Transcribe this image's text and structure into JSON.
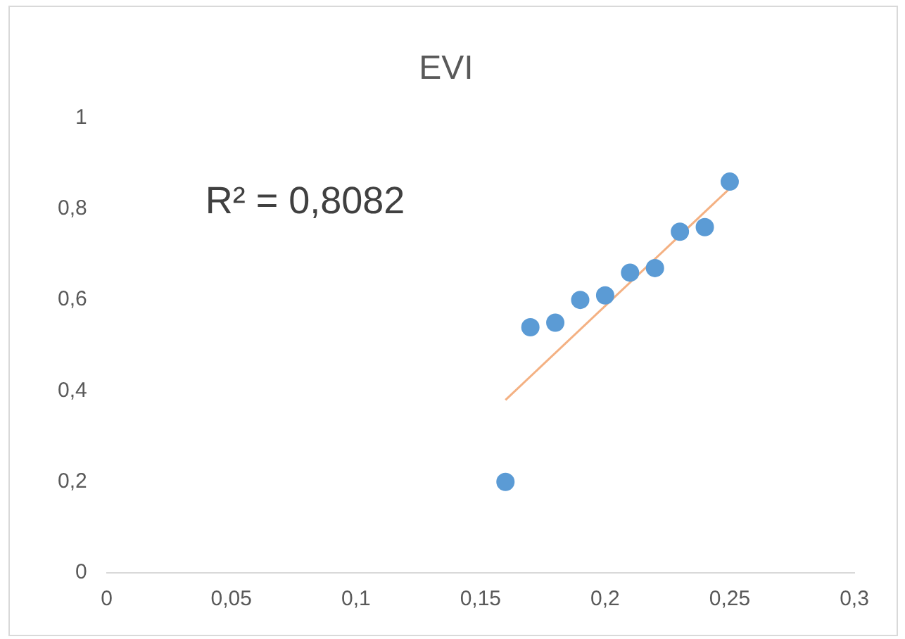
{
  "chart_data": {
    "type": "scatter",
    "title": "EVI",
    "x": [
      0.16,
      0.17,
      0.18,
      0.19,
      0.2,
      0.21,
      0.22,
      0.23,
      0.24,
      0.25
    ],
    "series": [
      {
        "color": "#5b9bd5",
        "values": [
          0.2,
          0.54,
          0.55,
          0.6,
          0.61,
          0.66,
          0.67,
          0.75,
          0.76,
          0.86
        ]
      },
      {
        "type": "line",
        "marker": "none",
        "color": "#f4b183",
        "x": [
          0.16,
          0.25
        ],
        "values": [
          0.38,
          0.845
        ]
      }
    ],
    "xlim": [
      0,
      0.3
    ],
    "xticks": [
      0,
      {
        "value": 0.05,
        "label": "0,05"
      },
      {
        "value": 0.1,
        "label": "0,1"
      },
      {
        "value": 0.15,
        "label": "0,15"
      },
      {
        "value": 0.2,
        "label": "0,2"
      },
      {
        "value": 0.25,
        "label": "0,25"
      },
      {
        "value": 0.3,
        "label": "0,3"
      }
    ],
    "ylim": [
      0,
      1
    ],
    "yticks": [
      0,
      {
        "value": 0.2,
        "label": "0,2"
      },
      {
        "value": 0.4,
        "label": "0,4"
      },
      {
        "value": 0.6,
        "label": "0,6"
      },
      {
        "value": 0.8,
        "label": "0,8"
      },
      1
    ],
    "annotations": [
      "R² = 0,8082"
    ],
    "grid": false,
    "legend": false,
    "marker": "circle"
  }
}
